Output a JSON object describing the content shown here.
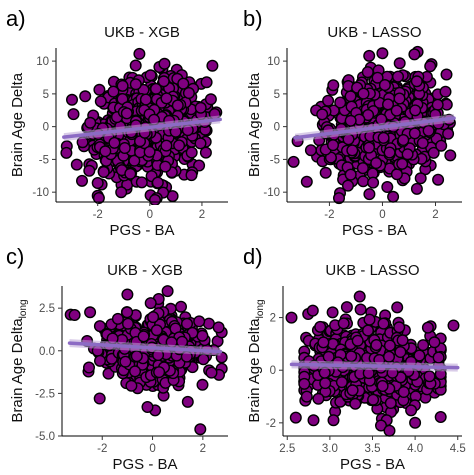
{
  "chart_data": [
    {
      "type": "scatter",
      "panel_label": "a)",
      "title": "UKB - XGB",
      "xlabel": "PGS - BA",
      "ylabel": "Brain Age Delta",
      "ylabel_sub": "",
      "xlim": [
        -3.6,
        3.0
      ],
      "ylim": [
        -11.5,
        12.0
      ],
      "xticks": [
        -2,
        0,
        2
      ],
      "yticks": [
        -10,
        -5,
        0,
        5,
        10
      ],
      "tick_decimals": 0,
      "grid": false,
      "legend": "none",
      "point_color": "#800080",
      "trend": {
        "x": [
          -3.3,
          2.7
        ],
        "y": [
          -1.6,
          1.1
        ]
      },
      "cloud": {
        "n": 900,
        "x_mean": 0.0,
        "x_sd": 1.0,
        "y_mean": 0.0,
        "y_sd": 3.8,
        "slope": 0.45
      },
      "outliers": {
        "x": [
          -2.8,
          -3.2,
          -1.1,
          0.2,
          -2.0,
          1.6,
          2.4,
          -0.4
        ],
        "y": [
          -5.8,
          -4.0,
          -10.0,
          -11.2,
          -8.6,
          -7.4,
          9.3,
          11.1
        ]
      }
    },
    {
      "type": "scatter",
      "panel_label": "b)",
      "title": "UKB - LASSO",
      "xlabel": "PGS - BA",
      "ylabel": "Brain Age Delta",
      "ylabel_sub": "",
      "xlim": [
        -3.6,
        3.0
      ],
      "ylim": [
        -11.5,
        12.0
      ],
      "xticks": [
        -2,
        0,
        2
      ],
      "yticks": [
        -10,
        -5,
        0,
        5,
        10
      ],
      "tick_decimals": 0,
      "grid": false,
      "legend": "none",
      "point_color": "#800080",
      "trend": {
        "x": [
          -3.3,
          2.7
        ],
        "y": [
          -1.7,
          1.3
        ]
      },
      "cloud": {
        "n": 900,
        "x_mean": 0.0,
        "x_sd": 1.0,
        "y_mean": 0.0,
        "y_sd": 3.8,
        "slope": 0.5
      },
      "outliers": {
        "x": [
          -3.2,
          -2.7,
          -1.3,
          0.4,
          1.3,
          2.1,
          -0.5,
          1.8
        ],
        "y": [
          -2.2,
          -3.6,
          -9.0,
          -10.7,
          -9.5,
          -8.1,
          10.8,
          9.2
        ]
      }
    },
    {
      "type": "scatter",
      "panel_label": "c)",
      "title": "UKB - XGB",
      "xlabel": "PGS - BA",
      "ylabel": "Brain Age Delta",
      "ylabel_sub": "long",
      "xlim": [
        -3.6,
        3.0
      ],
      "ylim": [
        -5.0,
        3.8
      ],
      "xticks": [
        -2,
        0,
        2
      ],
      "yticks": [
        -5.0,
        -2.5,
        0.0,
        2.5
      ],
      "tick_decimals": 1,
      "grid": false,
      "legend": "none",
      "point_color": "#800080",
      "trend": {
        "x": [
          -3.3,
          2.7
        ],
        "y": [
          0.45,
          -0.05
        ]
      },
      "cloud": {
        "n": 700,
        "x_mean": 0.0,
        "x_sd": 1.0,
        "y_mean": 0.15,
        "y_sd": 1.05,
        "slope": -0.08
      },
      "outliers": {
        "x": [
          -3.1,
          1.9,
          0.1,
          -2.1,
          1.4,
          -1.0,
          0.6,
          -0.2
        ],
        "y": [
          2.1,
          -4.6,
          -3.5,
          -2.8,
          -3.0,
          3.3,
          3.5,
          -3.3
        ]
      }
    },
    {
      "type": "scatter",
      "panel_label": "d)",
      "title": "UKB - LASSO",
      "xlabel": "PGS - BA",
      "ylabel": "Brain Age Delta",
      "ylabel_sub": "long",
      "xlim": [
        2.45,
        4.55
      ],
      "ylim": [
        -2.5,
        3.2
      ],
      "xticks": [
        2.5,
        3.0,
        3.5,
        4.0,
        4.5
      ],
      "yticks": [
        -2,
        0,
        2
      ],
      "tick_decimals": 1,
      "ytick_decimals": 0,
      "grid": false,
      "legend": "none",
      "point_color": "#800080",
      "trend": {
        "x": [
          2.55,
          4.5
        ],
        "y": [
          0.22,
          0.1
        ]
      },
      "cloud": {
        "n": 700,
        "x_mean": 3.5,
        "x_sd": 0.38,
        "y_mean": 0.15,
        "y_sd": 0.85,
        "slope": -0.06
      },
      "outliers": {
        "x": [
          2.55,
          4.45,
          3.35,
          3.6,
          3.7,
          2.6,
          3.2,
          4.0
        ],
        "y": [
          2.0,
          1.7,
          2.8,
          -2.1,
          -2.3,
          -1.8,
          2.4,
          -2.0
        ]
      }
    }
  ]
}
